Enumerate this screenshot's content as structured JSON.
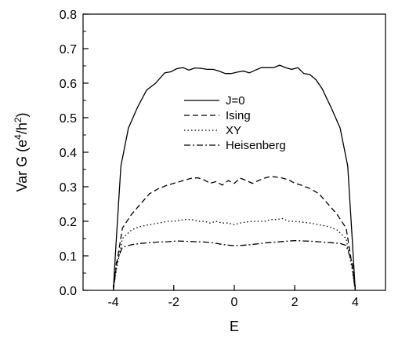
{
  "chart_data": {
    "type": "line",
    "title": "",
    "xlabel": "E",
    "ylabel": "Var G (e⁴/h²)",
    "xlim": [
      -5,
      5
    ],
    "ylim": [
      0.0,
      0.8
    ],
    "x_ticks": [
      -4,
      -2,
      0,
      2,
      4
    ],
    "x_tick_labels": [
      "-4",
      "-2",
      "0",
      "2",
      "4"
    ],
    "y_ticks": [
      0.0,
      0.1,
      0.2,
      0.3,
      0.4,
      0.5,
      0.6,
      0.7,
      0.8
    ],
    "y_tick_labels": [
      "0.0",
      "0.1",
      "0.2",
      "0.3",
      "0.4",
      "0.5",
      "0.6",
      "0.7",
      "0.8"
    ],
    "grid": false,
    "legend_position": "center",
    "series": [
      {
        "name": "J=0",
        "style": "solid",
        "x": [
          -4.0,
          -3.9,
          -3.75,
          -3.5,
          -3.2,
          -2.9,
          -2.6,
          -2.3,
          -2.1,
          -1.9,
          -1.7,
          -1.5,
          -1.3,
          -1.1,
          -0.9,
          -0.7,
          -0.5,
          -0.3,
          -0.1,
          0.1,
          0.3,
          0.5,
          0.7,
          0.9,
          1.1,
          1.3,
          1.5,
          1.7,
          1.9,
          2.1,
          2.3,
          2.5,
          2.7,
          2.9,
          3.2,
          3.5,
          3.75,
          3.9,
          4.0
        ],
        "y": [
          0.0,
          0.15,
          0.36,
          0.47,
          0.53,
          0.58,
          0.6,
          0.63,
          0.633,
          0.642,
          0.645,
          0.638,
          0.644,
          0.643,
          0.64,
          0.64,
          0.635,
          0.628,
          0.628,
          0.632,
          0.635,
          0.63,
          0.638,
          0.645,
          0.645,
          0.645,
          0.652,
          0.645,
          0.64,
          0.645,
          0.628,
          0.625,
          0.61,
          0.585,
          0.53,
          0.47,
          0.36,
          0.15,
          0.0
        ]
      },
      {
        "name": "Ising",
        "style": "dashed",
        "x": [
          -4.0,
          -3.9,
          -3.7,
          -3.4,
          -3.1,
          -2.8,
          -2.5,
          -2.2,
          -2.0,
          -1.8,
          -1.6,
          -1.4,
          -1.2,
          -1.0,
          -0.8,
          -0.6,
          -0.4,
          -0.2,
          0.0,
          0.2,
          0.4,
          0.6,
          0.8,
          1.0,
          1.2,
          1.4,
          1.6,
          1.8,
          2.0,
          2.2,
          2.5,
          2.8,
          3.1,
          3.4,
          3.7,
          3.9,
          4.0
        ],
        "y": [
          0.0,
          0.07,
          0.18,
          0.22,
          0.25,
          0.28,
          0.295,
          0.305,
          0.31,
          0.315,
          0.32,
          0.325,
          0.326,
          0.32,
          0.31,
          0.315,
          0.305,
          0.318,
          0.31,
          0.325,
          0.318,
          0.31,
          0.318,
          0.325,
          0.33,
          0.328,
          0.325,
          0.32,
          0.31,
          0.305,
          0.295,
          0.28,
          0.25,
          0.22,
          0.18,
          0.07,
          0.0
        ]
      },
      {
        "name": "XY",
        "style": "dotted",
        "x": [
          -4.0,
          -3.9,
          -3.7,
          -3.4,
          -3.1,
          -2.8,
          -2.5,
          -2.2,
          -2.0,
          -1.8,
          -1.6,
          -1.4,
          -1.2,
          -1.0,
          -0.8,
          -0.6,
          -0.4,
          -0.2,
          0.0,
          0.2,
          0.4,
          0.6,
          0.8,
          1.0,
          1.2,
          1.4,
          1.6,
          1.8,
          2.0,
          2.2,
          2.5,
          2.8,
          3.1,
          3.4,
          3.7,
          3.9,
          4.0
        ],
        "y": [
          0.0,
          0.06,
          0.15,
          0.175,
          0.185,
          0.19,
          0.195,
          0.2,
          0.2,
          0.203,
          0.205,
          0.205,
          0.2,
          0.2,
          0.195,
          0.2,
          0.195,
          0.195,
          0.19,
          0.195,
          0.198,
          0.2,
          0.2,
          0.2,
          0.205,
          0.205,
          0.208,
          0.2,
          0.2,
          0.198,
          0.195,
          0.19,
          0.185,
          0.175,
          0.15,
          0.06,
          0.0
        ]
      },
      {
        "name": "Heisenberg",
        "style": "dashdot",
        "x": [
          -4.0,
          -3.9,
          -3.7,
          -3.4,
          -3.1,
          -2.8,
          -2.5,
          -2.2,
          -1.9,
          -1.6,
          -1.3,
          -1.0,
          -0.7,
          -0.4,
          -0.1,
          0.2,
          0.5,
          0.8,
          1.1,
          1.4,
          1.7,
          2.0,
          2.3,
          2.6,
          2.9,
          3.2,
          3.5,
          3.7,
          3.9,
          4.0
        ],
        "y": [
          0.0,
          0.08,
          0.125,
          0.132,
          0.136,
          0.138,
          0.14,
          0.141,
          0.143,
          0.142,
          0.141,
          0.14,
          0.138,
          0.133,
          0.13,
          0.13,
          0.132,
          0.135,
          0.138,
          0.14,
          0.142,
          0.144,
          0.143,
          0.142,
          0.14,
          0.138,
          0.136,
          0.13,
          0.08,
          0.0
        ]
      }
    ]
  }
}
